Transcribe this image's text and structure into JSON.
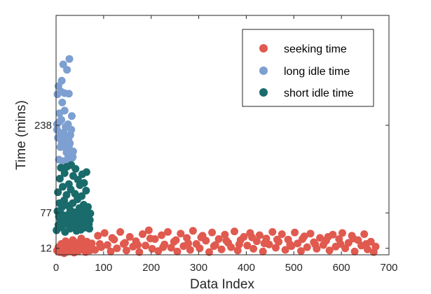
{
  "chart_data": {
    "type": "scatter",
    "xlabel": "Data Index",
    "ylabel": "Time (mins)",
    "xlim": [
      0,
      700
    ],
    "ylim": [
      0,
      440
    ],
    "xticks": [
      0,
      100,
      200,
      300,
      400,
      500,
      600,
      700
    ],
    "yticks": [
      12,
      77,
      238
    ],
    "grid": false,
    "legend_position": "top-right",
    "series": [
      {
        "name": "seeking time",
        "color": "#e05a4f",
        "points": [
          [
            2,
            8
          ],
          [
            5,
            14
          ],
          [
            8,
            5
          ],
          [
            11,
            20
          ],
          [
            14,
            10
          ],
          [
            17,
            3
          ],
          [
            20,
            25
          ],
          [
            23,
            12
          ],
          [
            26,
            6
          ],
          [
            29,
            18
          ],
          [
            32,
            9
          ],
          [
            35,
            27
          ],
          [
            38,
            4
          ],
          [
            41,
            15
          ],
          [
            44,
            22
          ],
          [
            47,
            7
          ],
          [
            50,
            13
          ],
          [
            53,
            30
          ],
          [
            56,
            11
          ],
          [
            59,
            19
          ],
          [
            62,
            5
          ],
          [
            65,
            24
          ],
          [
            68,
            16
          ],
          [
            71,
            8
          ],
          [
            75,
            21
          ],
          [
            82,
            9
          ],
          [
            88,
            35
          ],
          [
            95,
            14
          ],
          [
            102,
            40
          ],
          [
            108,
            18
          ],
          [
            115,
            6
          ],
          [
            122,
            28
          ],
          [
            128,
            12
          ],
          [
            135,
            42
          ],
          [
            142,
            20
          ],
          [
            148,
            8
          ],
          [
            155,
            33
          ],
          [
            162,
            15
          ],
          [
            168,
            25
          ],
          [
            175,
            5
          ],
          [
            182,
            38
          ],
          [
            188,
            17
          ],
          [
            195,
            45
          ],
          [
            202,
            11
          ],
          [
            208,
            29
          ],
          [
            215,
            7
          ],
          [
            222,
            36
          ],
          [
            228,
            19
          ],
          [
            235,
            42
          ],
          [
            242,
            13
          ],
          [
            248,
            24
          ],
          [
            255,
            6
          ],
          [
            262,
            39
          ],
          [
            268,
            16
          ],
          [
            275,
            31
          ],
          [
            282,
            9
          ],
          [
            288,
            44
          ],
          [
            295,
            20
          ],
          [
            302,
            12
          ],
          [
            308,
            35
          ],
          [
            315,
            26
          ],
          [
            322,
            5
          ],
          [
            328,
            41
          ],
          [
            335,
            18
          ],
          [
            342,
            29
          ],
          [
            348,
            10
          ],
          [
            355,
            37
          ],
          [
            362,
            22
          ],
          [
            368,
            14
          ],
          [
            375,
            43
          ],
          [
            382,
            8
          ],
          [
            388,
            27
          ],
          [
            395,
            33
          ],
          [
            402,
            17
          ],
          [
            408,
            40
          ],
          [
            415,
            11
          ],
          [
            422,
            25
          ],
          [
            428,
            36
          ],
          [
            435,
            6
          ],
          [
            442,
            30
          ],
          [
            448,
            19
          ],
          [
            455,
            42
          ],
          [
            462,
            13
          ],
          [
            468,
            24
          ],
          [
            475,
            38
          ],
          [
            482,
            9
          ],
          [
            488,
            28
          ],
          [
            495,
            16
          ],
          [
            502,
            41
          ],
          [
            508,
            21
          ],
          [
            515,
            7
          ],
          [
            522,
            34
          ],
          [
            528,
            14
          ],
          [
            535,
            39
          ],
          [
            542,
            23
          ],
          [
            548,
            11
          ],
          [
            555,
            31
          ],
          [
            562,
            18
          ],
          [
            568,
            26
          ],
          [
            575,
            8
          ],
          [
            582,
            37
          ],
          [
            588,
            15
          ],
          [
            595,
            29
          ],
          [
            602,
            40
          ],
          [
            608,
            12
          ],
          [
            615,
            22
          ],
          [
            622,
            35
          ],
          [
            628,
            6
          ],
          [
            635,
            27
          ],
          [
            642,
            17
          ],
          [
            648,
            38
          ],
          [
            655,
            10
          ],
          [
            662,
            24
          ],
          [
            668,
            5
          ],
          [
            672,
            15
          ],
          [
            92,
            20
          ],
          [
            118,
            31
          ],
          [
            145,
            22
          ],
          [
            172,
            18
          ],
          [
            198,
            30
          ],
          [
            225,
            14
          ],
          [
            252,
            27
          ],
          [
            278,
            21
          ],
          [
            305,
            32
          ],
          [
            332,
            16
          ],
          [
            358,
            26
          ],
          [
            385,
            19
          ],
          [
            412,
            32
          ],
          [
            438,
            21
          ],
          [
            465,
            28
          ],
          [
            492,
            19
          ],
          [
            518,
            29
          ],
          [
            545,
            19
          ],
          [
            572,
            33
          ],
          [
            598,
            20
          ],
          [
            625,
            30
          ],
          [
            652,
            20
          ]
        ]
      },
      {
        "name": "long idle time",
        "color": "#7d9fd1",
        "points": [
          [
            2,
            230
          ],
          [
            3,
            295
          ],
          [
            5,
            310
          ],
          [
            7,
            260
          ],
          [
            8,
            245
          ],
          [
            10,
            300
          ],
          [
            12,
            205
          ],
          [
            13,
            280
          ],
          [
            15,
            350
          ],
          [
            16,
            225
          ],
          [
            18,
            265
          ],
          [
            19,
            215
          ],
          [
            21,
            195
          ],
          [
            23,
            340
          ],
          [
            25,
            240
          ],
          [
            27,
            200
          ],
          [
            28,
            360
          ],
          [
            30,
            220
          ],
          [
            31,
            185
          ],
          [
            33,
            255
          ],
          [
            35,
            180
          ],
          [
            4,
            215
          ],
          [
            6,
            175
          ],
          [
            9,
            198
          ],
          [
            11,
            248
          ],
          [
            14,
            172
          ],
          [
            17,
            208
          ],
          [
            20,
            235
          ],
          [
            22,
            188
          ],
          [
            24,
            176
          ],
          [
            26,
            212
          ],
          [
            29,
            205
          ],
          [
            32,
            230
          ],
          [
            34,
            178
          ],
          [
            36,
            190
          ],
          [
            12,
            320
          ],
          [
            18,
            297
          ],
          [
            27,
            296
          ],
          [
            2,
            240
          ],
          [
            8,
            218
          ]
        ]
      },
      {
        "name": "short idle time",
        "color": "#1a6b6b",
        "points": [
          [
            1,
            45
          ],
          [
            3,
            80
          ],
          [
            4,
            115
          ],
          [
            5,
            55
          ],
          [
            7,
            95
          ],
          [
            8,
            140
          ],
          [
            9,
            65
          ],
          [
            10,
            160
          ],
          [
            12,
            50
          ],
          [
            13,
            88
          ],
          [
            14,
            125
          ],
          [
            15,
            60
          ],
          [
            17,
            100
          ],
          [
            18,
            150
          ],
          [
            19,
            42
          ],
          [
            21,
            72
          ],
          [
            22,
            110
          ],
          [
            23,
            162
          ],
          [
            25,
            58
          ],
          [
            26,
            90
          ],
          [
            27,
            130
          ],
          [
            29,
            48
          ],
          [
            30,
            82
          ],
          [
            31,
            120
          ],
          [
            32,
            165
          ],
          [
            34,
            62
          ],
          [
            35,
            95
          ],
          [
            36,
            145
          ],
          [
            38,
            52
          ],
          [
            39,
            78
          ],
          [
            40,
            112
          ],
          [
            41,
            158
          ],
          [
            43,
            44
          ],
          [
            44,
            70
          ],
          [
            45,
            102
          ],
          [
            46,
            138
          ],
          [
            48,
            56
          ],
          [
            49,
            86
          ],
          [
            50,
            128
          ],
          [
            52,
            46
          ],
          [
            53,
            74
          ],
          [
            54,
            108
          ],
          [
            55,
            148
          ],
          [
            57,
            60
          ],
          [
            58,
            92
          ],
          [
            59,
            132
          ],
          [
            61,
            50
          ],
          [
            62,
            80
          ],
          [
            63,
            118
          ],
          [
            64,
            152
          ],
          [
            66,
            58
          ],
          [
            67,
            88
          ],
          [
            68,
            70
          ],
          [
            70,
            48
          ],
          [
            71,
            64
          ],
          [
            72,
            76
          ],
          [
            6,
            70
          ],
          [
            11,
            75
          ],
          [
            16,
            67
          ],
          [
            20,
            57
          ],
          [
            24,
            73
          ],
          [
            28,
            63
          ],
          [
            33,
            77
          ],
          [
            37,
            69
          ],
          [
            42,
            59
          ],
          [
            47,
            75
          ],
          [
            51,
            66
          ],
          [
            56,
            72
          ],
          [
            60,
            61
          ],
          [
            65,
            68
          ],
          [
            69,
            56
          ]
        ]
      }
    ]
  }
}
